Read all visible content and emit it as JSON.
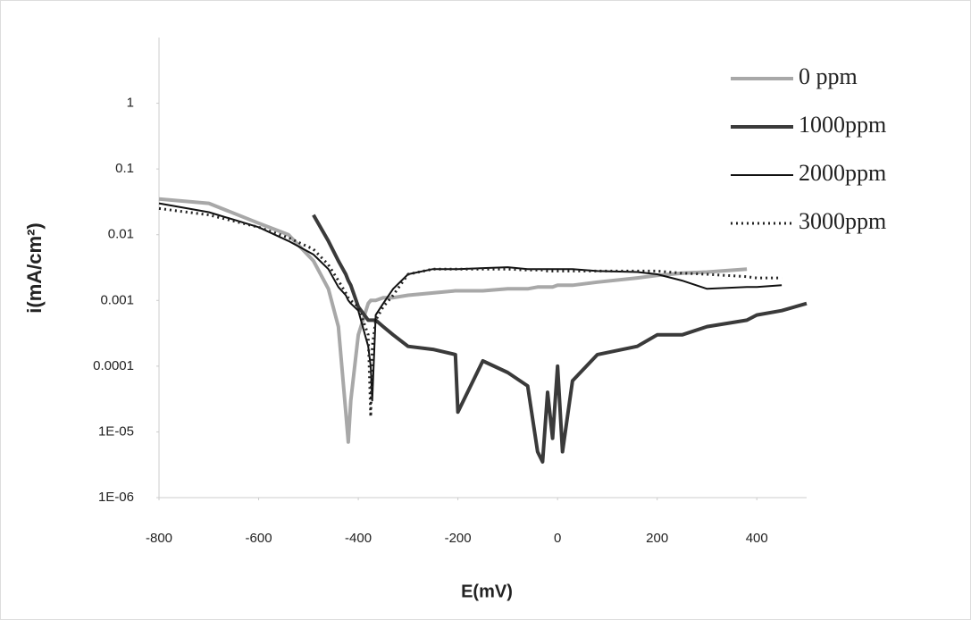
{
  "chart_data": {
    "type": "line",
    "xlabel": "E(mV)",
    "ylabel": "i(mA/cm²)",
    "yscale": "log",
    "grid": false,
    "legend": "upper right",
    "xlim": [
      -800,
      500
    ],
    "xticks": [
      -800,
      -600,
      -400,
      -200,
      0,
      200,
      400
    ],
    "ylim": [
      1e-06,
      10
    ],
    "yticks": [
      {
        "value": 1e-06,
        "label": "1E-06"
      },
      {
        "value": 1e-05,
        "label": "1E-05"
      },
      0.0001,
      0.001,
      0.01,
      0.1,
      1
    ],
    "x": [
      -800,
      -700,
      -600,
      -540,
      -490,
      -460,
      -440,
      -425,
      -420,
      -415,
      -400,
      -380,
      -375,
      -372,
      -365,
      -350,
      -330,
      -300,
      -250,
      -205,
      -200,
      -150,
      -100,
      -60,
      -40,
      -30,
      -20,
      -10,
      0,
      10,
      30,
      80,
      160,
      200,
      250,
      300,
      380,
      400,
      450,
      500
    ],
    "series": [
      {
        "name": "0 ppm",
        "color": "#a8a8a8",
        "width": 4,
        "dash": "solid",
        "values": [
          0.035,
          0.03,
          0.015,
          0.01,
          0.004,
          0.0015,
          0.0004,
          2e-05,
          7e-06,
          3e-05,
          0.0003,
          0.0009,
          0.001,
          0.001,
          0.001,
          0.0011,
          0.0011,
          0.0012,
          0.0013,
          0.0014,
          0.0014,
          0.0014,
          0.0015,
          0.0015,
          0.0016,
          0.0016,
          0.0016,
          0.0016,
          0.0017,
          0.0017,
          0.0017,
          0.0019,
          0.0022,
          0.0024,
          0.0026,
          0.0027,
          0.003,
          null,
          null,
          null
        ]
      },
      {
        "name": "1000ppm",
        "color": "#3a3a3a",
        "width": 4,
        "dash": "solid",
        "values": [
          null,
          null,
          null,
          null,
          0.02,
          0.008,
          0.004,
          0.0025,
          0.002,
          0.0017,
          0.0008,
          0.0005,
          0.0005,
          0.0005,
          0.0005,
          0.0004,
          0.0003,
          0.0002,
          0.00018,
          0.00015,
          2e-05,
          0.00012,
          8e-05,
          5e-05,
          5e-06,
          3.5e-06,
          4e-05,
          8e-06,
          0.0001,
          5e-06,
          6e-05,
          0.00015,
          0.0002,
          0.0003,
          0.0003,
          0.0004,
          0.0005,
          0.0006,
          0.0007,
          0.0009
        ]
      },
      {
        "name": "2000ppm",
        "color": "#111111",
        "width": 2,
        "dash": "solid",
        "values": [
          0.03,
          0.022,
          0.013,
          0.008,
          0.005,
          0.003,
          0.0016,
          0.0012,
          0.001,
          0.0009,
          0.0007,
          0.0002,
          0.0001,
          3e-05,
          0.0006,
          0.0009,
          0.0015,
          0.0025,
          0.003,
          0.003,
          0.003,
          0.0031,
          0.0032,
          0.003,
          0.003,
          0.003,
          0.003,
          0.003,
          0.003,
          0.003,
          0.003,
          0.0028,
          0.0027,
          0.0025,
          0.002,
          0.0015,
          0.0016,
          0.0016,
          0.0017,
          null
        ]
      },
      {
        "name": "3000ppm",
        "color": "#222222",
        "width": 3,
        "dash": "dotted",
        "values": [
          0.025,
          0.02,
          0.013,
          0.009,
          0.006,
          0.0035,
          0.002,
          0.0013,
          0.0011,
          0.001,
          0.0008,
          0.0003,
          1.7e-05,
          0.0002,
          0.0005,
          0.0008,
          0.0012,
          0.0025,
          0.003,
          0.003,
          0.003,
          0.003,
          0.003,
          0.0029,
          0.0029,
          0.0029,
          0.0028,
          0.0028,
          0.0028,
          0.0028,
          0.0028,
          0.0028,
          0.0028,
          0.0028,
          0.0026,
          0.0025,
          0.0023,
          0.0022,
          0.0022,
          null
        ]
      }
    ]
  }
}
